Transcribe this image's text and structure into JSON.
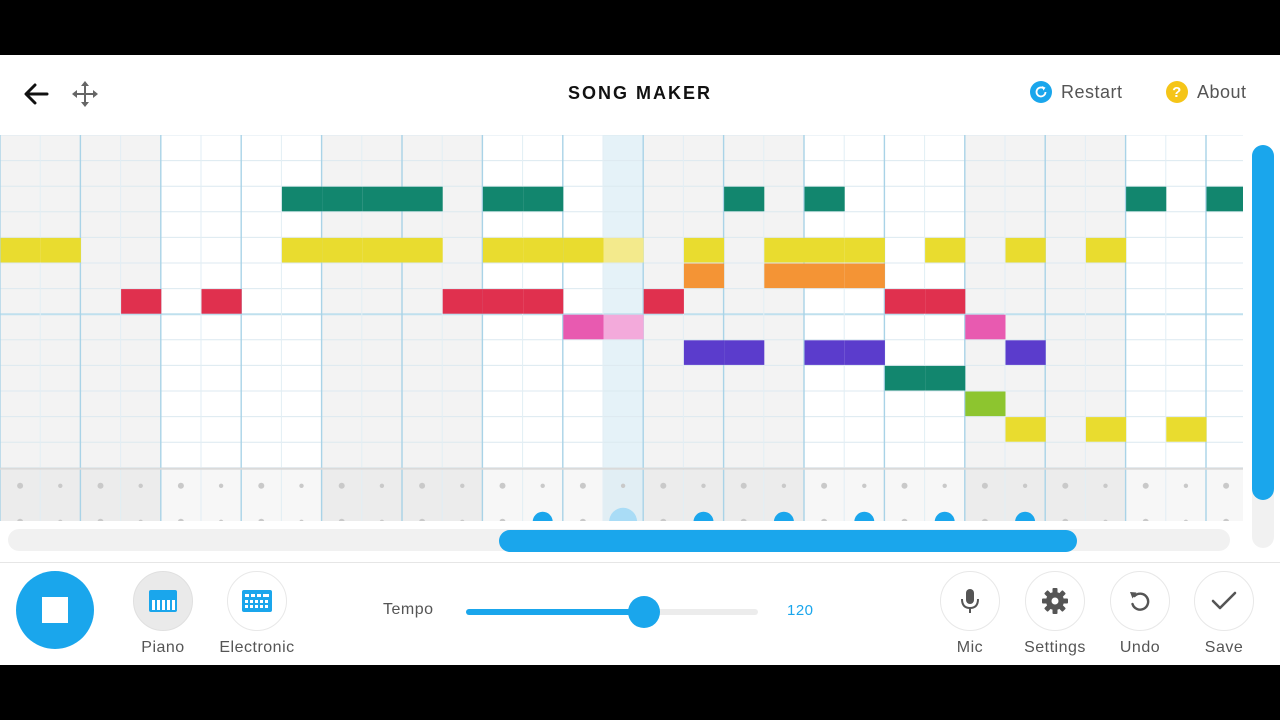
{
  "header": {
    "title": "SONG MAKER",
    "restart_label": "Restart",
    "about_label": "About",
    "restart_color": "#1aa6ec",
    "about_color": "#f5c518",
    "icons": [
      "back-arrow-icon",
      "move-arrows-icon",
      "refresh-icon",
      "question-mark-icon"
    ]
  },
  "grid": {
    "columns": 31,
    "melody_rows": 13,
    "beats_per_bar": 2,
    "playhead_column": 15,
    "notes": [
      {
        "col": 7,
        "row": 2,
        "color": "#12866e"
      },
      {
        "col": 8,
        "row": 2,
        "color": "#12866e"
      },
      {
        "col": 9,
        "row": 2,
        "color": "#12866e"
      },
      {
        "col": 10,
        "row": 2,
        "color": "#12866e"
      },
      {
        "col": 12,
        "row": 2,
        "color": "#12866e"
      },
      {
        "col": 13,
        "row": 2,
        "color": "#12866e"
      },
      {
        "col": 18,
        "row": 2,
        "color": "#12866e"
      },
      {
        "col": 20,
        "row": 2,
        "color": "#12866e"
      },
      {
        "col": 28,
        "row": 2,
        "color": "#12866e"
      },
      {
        "col": 30,
        "row": 2,
        "color": "#12866e"
      },
      {
        "col": 0,
        "row": 4,
        "color": "#e9dc2f"
      },
      {
        "col": 1,
        "row": 4,
        "color": "#e9dc2f"
      },
      {
        "col": 7,
        "row": 4,
        "color": "#e9dc2f"
      },
      {
        "col": 8,
        "row": 4,
        "color": "#e9dc2f"
      },
      {
        "col": 9,
        "row": 4,
        "color": "#e9dc2f"
      },
      {
        "col": 10,
        "row": 4,
        "color": "#e9dc2f"
      },
      {
        "col": 12,
        "row": 4,
        "color": "#e9dc2f"
      },
      {
        "col": 13,
        "row": 4,
        "color": "#e9dc2f"
      },
      {
        "col": 14,
        "row": 4,
        "color": "#e9dc2f"
      },
      {
        "col": 15,
        "row": 4,
        "color": "#f3ea8c"
      },
      {
        "col": 17,
        "row": 4,
        "color": "#e9dc2f"
      },
      {
        "col": 19,
        "row": 4,
        "color": "#e9dc2f"
      },
      {
        "col": 20,
        "row": 4,
        "color": "#e9dc2f"
      },
      {
        "col": 21,
        "row": 4,
        "color": "#e9dc2f"
      },
      {
        "col": 23,
        "row": 4,
        "color": "#e9dc2f"
      },
      {
        "col": 25,
        "row": 4,
        "color": "#e9dc2f"
      },
      {
        "col": 27,
        "row": 4,
        "color": "#e9dc2f"
      },
      {
        "col": 17,
        "row": 5,
        "color": "#f49435"
      },
      {
        "col": 19,
        "row": 5,
        "color": "#f49435"
      },
      {
        "col": 20,
        "row": 5,
        "color": "#f49435"
      },
      {
        "col": 21,
        "row": 5,
        "color": "#f49435"
      },
      {
        "col": 3,
        "row": 6,
        "color": "#e0304e"
      },
      {
        "col": 5,
        "row": 6,
        "color": "#e0304e"
      },
      {
        "col": 11,
        "row": 6,
        "color": "#e0304e"
      },
      {
        "col": 12,
        "row": 6,
        "color": "#e0304e"
      },
      {
        "col": 13,
        "row": 6,
        "color": "#e0304e"
      },
      {
        "col": 16,
        "row": 6,
        "color": "#e0304e"
      },
      {
        "col": 22,
        "row": 6,
        "color": "#e0304e"
      },
      {
        "col": 23,
        "row": 6,
        "color": "#e0304e"
      },
      {
        "col": 14,
        "row": 7,
        "color": "#e85ab0"
      },
      {
        "col": 15,
        "row": 7,
        "color": "#f3aadb"
      },
      {
        "col": 24,
        "row": 7,
        "color": "#e85ab0"
      },
      {
        "col": 17,
        "row": 8,
        "color": "#5b3ccc"
      },
      {
        "col": 18,
        "row": 8,
        "color": "#5b3ccc"
      },
      {
        "col": 20,
        "row": 8,
        "color": "#5b3ccc"
      },
      {
        "col": 21,
        "row": 8,
        "color": "#5b3ccc"
      },
      {
        "col": 25,
        "row": 8,
        "color": "#5b3ccc"
      },
      {
        "col": 22,
        "row": 9,
        "color": "#12866e"
      },
      {
        "col": 23,
        "row": 9,
        "color": "#12866e"
      },
      {
        "col": 24,
        "row": 10,
        "color": "#8dc52f"
      },
      {
        "col": 25,
        "row": 11,
        "color": "#e9dc2f"
      },
      {
        "col": 27,
        "row": 11,
        "color": "#e9dc2f"
      },
      {
        "col": 29,
        "row": 11,
        "color": "#e9dc2f"
      }
    ],
    "percussion_hits": [
      {
        "col": 13,
        "row": 1
      },
      {
        "col": 15,
        "row": 1,
        "active": true
      },
      {
        "col": 17,
        "row": 1
      },
      {
        "col": 19,
        "row": 1
      },
      {
        "col": 21,
        "row": 1
      },
      {
        "col": 23,
        "row": 1
      },
      {
        "col": 25,
        "row": 1
      }
    ]
  },
  "toolbar": {
    "play_state": "stop",
    "piano_label": "Piano",
    "electronic_label": "Electronic",
    "tempo_label": "Tempo",
    "tempo_value": "120",
    "tempo_fraction": 0.61,
    "mic_label": "Mic",
    "settings_label": "Settings",
    "undo_label": "Undo",
    "save_label": "Save",
    "accent_color": "#1aa6ec"
  }
}
